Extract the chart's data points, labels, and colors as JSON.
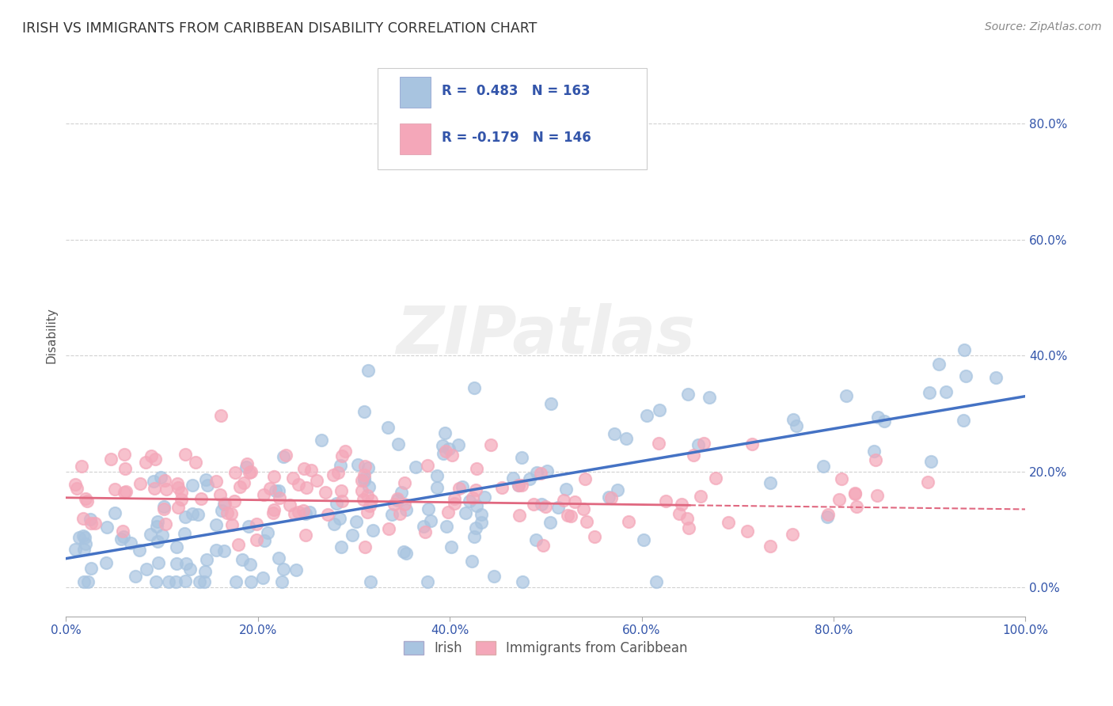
{
  "title": "IRISH VS IMMIGRANTS FROM CARIBBEAN DISABILITY CORRELATION CHART",
  "source": "Source: ZipAtlas.com",
  "ylabel": "Disability",
  "xlim": [
    0.0,
    1.0
  ],
  "ylim": [
    -0.05,
    0.92
  ],
  "yticks": [
    0.0,
    0.2,
    0.4,
    0.6,
    0.8
  ],
  "ytick_labels": [
    "0.0%",
    "20.0%",
    "40.0%",
    "60.0%",
    "80.0%"
  ],
  "xticks": [
    0.0,
    0.2,
    0.4,
    0.6,
    0.8,
    1.0
  ],
  "xtick_labels": [
    "0.0%",
    "20.0%",
    "40.0%",
    "60.0%",
    "80.0%",
    "100.0%"
  ],
  "irish_R": 0.483,
  "irish_N": 163,
  "carib_R": -0.179,
  "carib_N": 146,
  "irish_color": "#a8c4e0",
  "carib_color": "#f4a7b9",
  "irish_line_color": "#4472c4",
  "carib_line_color": "#e06880",
  "legend_text_color": "#3355aa",
  "background_color": "#ffffff",
  "grid_color": "#cccccc",
  "title_color": "#333333",
  "irish_line_start_y": 0.05,
  "irish_line_end_y": 0.33,
  "carib_line_start_y": 0.155,
  "carib_line_end_y": 0.135
}
